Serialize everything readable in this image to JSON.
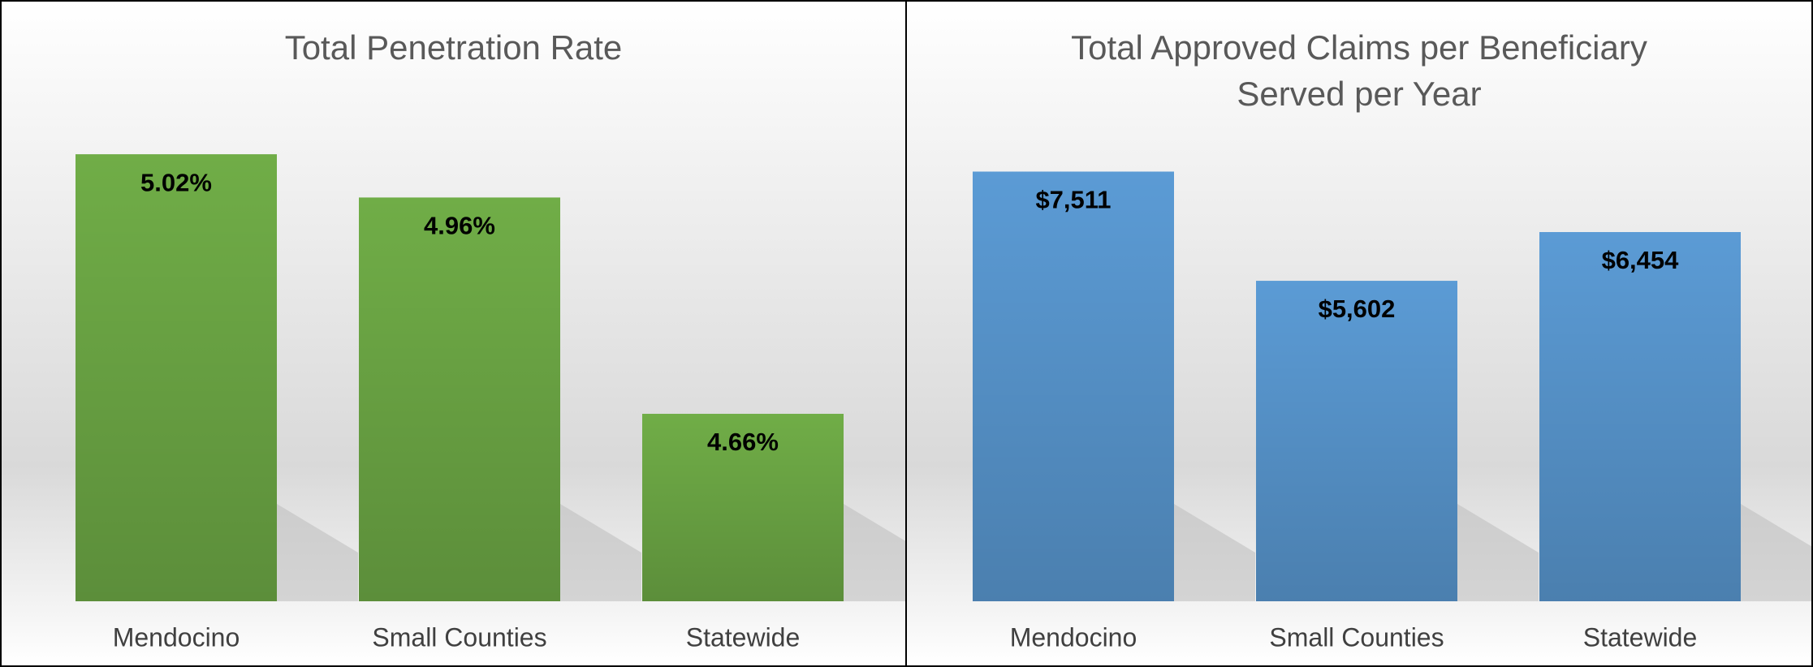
{
  "chart_data": [
    {
      "type": "bar",
      "title": "Total Penetration Rate",
      "categories": [
        "Mendocino",
        "Small Counties",
        "Statewide"
      ],
      "values": [
        5.02,
        4.96,
        4.66
      ],
      "value_labels": [
        "5.02%",
        "4.96%",
        "4.66%"
      ],
      "color": "#70ad47",
      "ylim": [
        4.4,
        5.1
      ]
    },
    {
      "type": "bar",
      "title": "Total Approved Claims per Beneficiary Served per Year",
      "categories": [
        "Mendocino",
        "Small Counties",
        "Statewide"
      ],
      "values": [
        7511,
        5602,
        6454
      ],
      "value_labels": [
        "$7,511",
        "$5,602",
        "$6,454"
      ],
      "color": "#5b9bd5",
      "ylim": [
        0,
        8000
      ]
    }
  ]
}
